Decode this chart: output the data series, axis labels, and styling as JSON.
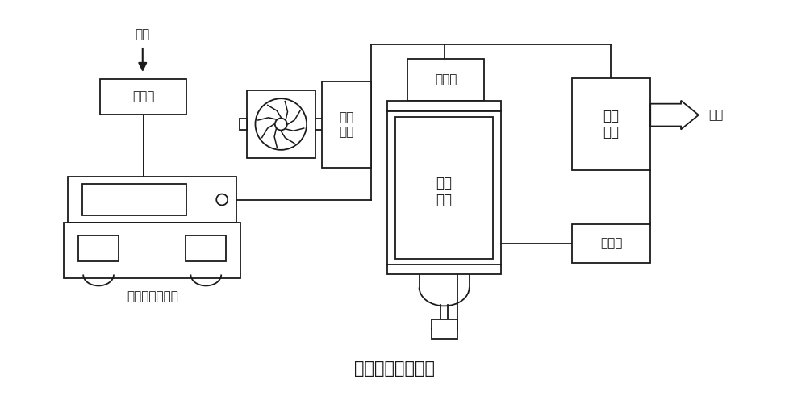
{
  "title": "氧气机原理示例图",
  "title_fontsize": 15,
  "background_color": "#ffffff",
  "line_color": "#1a1a1a",
  "text_color": "#1a1a1a",
  "labels": {
    "kongqi": "空气",
    "guolvqi": "过滤器",
    "lengque": "冷却\n系统",
    "fenlifa": "分离阀",
    "fenzishai": "分子\n筛塔",
    "shihua": "湿化\n水箱",
    "kongzhifa": "控制阀",
    "wuyou": "无油空气压缩机",
    "yangqi": "氧气"
  },
  "figsize": [
    9.79,
    4.96
  ],
  "dpi": 100
}
